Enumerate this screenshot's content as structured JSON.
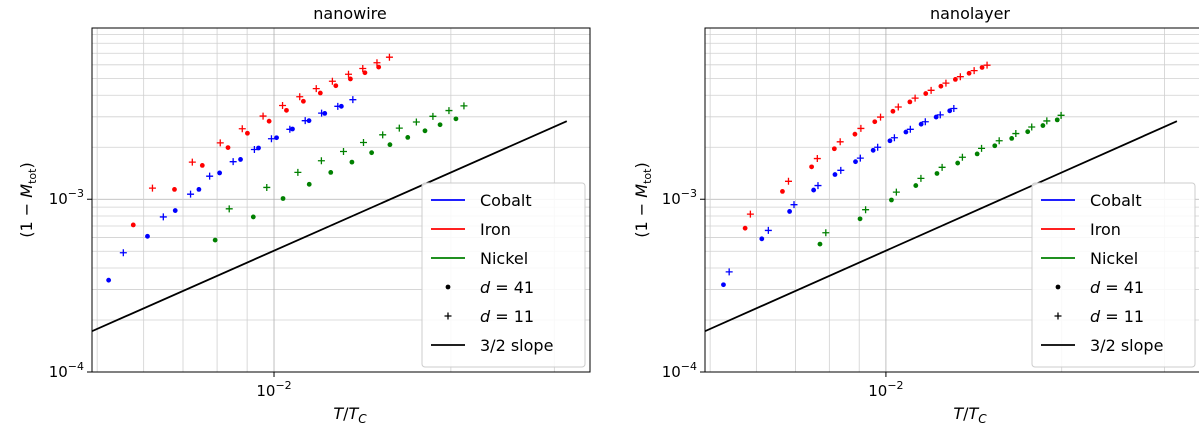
{
  "chart_data": [
    {
      "type": "scatter",
      "title": "nanowire",
      "xlabel": "T/T_C",
      "ylabel": "(1 − M_tot)",
      "xscale": "log",
      "yscale": "log",
      "xlim": [
        0.0049,
        0.0345
      ],
      "ylim": [
        0.0001,
        0.0098
      ],
      "xticks": [
        {
          "value": 0.01,
          "base": "10",
          "exp": "−2"
        }
      ],
      "yticks": [
        {
          "value": 0.0001,
          "base": "10",
          "exp": "−4"
        },
        {
          "value": 0.001,
          "base": "10",
          "exp": "−3"
        }
      ],
      "grid": "major and minor",
      "legend_position": "lower right",
      "legend": [
        {
          "kind": "line",
          "color": "#0000ff",
          "label": "Cobalt"
        },
        {
          "kind": "line",
          "color": "#ff0000",
          "label": "Iron"
        },
        {
          "kind": "line",
          "color": "#008000",
          "label": "Nickel"
        },
        {
          "kind": "dot",
          "color": "#000000",
          "label": "d = 41",
          "var": "d",
          "eq": " = 41"
        },
        {
          "kind": "plus",
          "color": "#000000",
          "label": "d = 11",
          "var": "d",
          "eq": " = 11"
        },
        {
          "kind": "line",
          "color": "#000000",
          "label": "3/2 slope"
        }
      ],
      "series": [
        {
          "name": "Cobalt",
          "marker": "dot",
          "color": "#0000ff",
          "x": [
            0.00523,
            0.00609,
            0.00679,
            0.00745,
            0.00808,
            0.00877,
            0.00941,
            0.0101,
            0.01075,
            0.01147,
            0.0122,
            0.01302
          ],
          "y": [
            0.00034,
            0.00061,
            0.00086,
            0.00114,
            0.00142,
            0.0017,
            0.00198,
            0.00227,
            0.00255,
            0.00285,
            0.00314,
            0.00345
          ]
        },
        {
          "name": "Cobalt",
          "marker": "plus",
          "color": "#0000ff",
          "x": [
            0.00554,
            0.00648,
            0.00721,
            0.00777,
            0.00852,
            0.00926,
            0.0099,
            0.01064,
            0.0113,
            0.01205,
            0.01284,
            0.01362
          ],
          "y": [
            0.00049,
            0.00079,
            0.00107,
            0.00136,
            0.00165,
            0.00194,
            0.00224,
            0.00254,
            0.00285,
            0.00315,
            0.00345,
            0.00377
          ]
        },
        {
          "name": "Iron",
          "marker": "dot",
          "color": "#ff0000",
          "x": [
            0.00576,
            0.00677,
            0.00755,
            0.00835,
            0.00901,
            0.00981,
            0.0105,
            0.01122,
            0.01199,
            0.01274,
            0.01349,
            0.01428,
            0.01507
          ],
          "y": [
            0.00071,
            0.00114,
            0.00157,
            0.00199,
            0.00241,
            0.00283,
            0.00327,
            0.00369,
            0.00412,
            0.00454,
            0.00497,
            0.0054,
            0.00582
          ]
        },
        {
          "name": "Iron",
          "marker": "plus",
          "color": "#ff0000",
          "x": [
            0.00621,
            0.00726,
            0.0081,
            0.00883,
            0.00958,
            0.01034,
            0.01106,
            0.0118,
            0.01257,
            0.01339,
            0.01416,
            0.01497,
            0.01572
          ],
          "y": [
            0.00116,
            0.00164,
            0.00212,
            0.00256,
            0.00303,
            0.00349,
            0.00392,
            0.00437,
            0.00482,
            0.00529,
            0.00571,
            0.00617,
            0.00664
          ]
        },
        {
          "name": "Nickel",
          "marker": "dot",
          "color": "#008000",
          "x": [
            0.00794,
            0.00922,
            0.01036,
            0.01148,
            0.01249,
            0.01357,
            0.01466,
            0.01575,
            0.01689,
            0.01807,
            0.01917,
            0.0204
          ],
          "y": [
            0.00058,
            0.00079,
            0.00101,
            0.00122,
            0.00143,
            0.00164,
            0.00186,
            0.00207,
            0.00228,
            0.00249,
            0.0027,
            0.00292
          ]
        },
        {
          "name": "Nickel",
          "marker": "plus",
          "color": "#008000",
          "x": [
            0.00839,
            0.00972,
            0.01098,
            0.01204,
            0.01313,
            0.0142,
            0.01531,
            0.01634,
            0.01747,
            0.01864,
            0.01985,
            0.02105
          ],
          "y": [
            0.00088,
            0.00117,
            0.00143,
            0.00167,
            0.00189,
            0.00213,
            0.00236,
            0.00258,
            0.0028,
            0.00302,
            0.00326,
            0.00347
          ]
        },
        {
          "name": "3/2 slope",
          "marker": "line",
          "color": "#000000",
          "x": [
            0.0048,
            0.0315
          ],
          "y": [
            0.000167,
            0.00283
          ]
        }
      ]
    },
    {
      "type": "scatter",
      "title": "nanolayer",
      "xlabel": "T/T_C",
      "ylabel": "(1 − M_tot)",
      "xscale": "log",
      "yscale": "log",
      "xlim": [
        0.0049,
        0.0345
      ],
      "ylim": [
        0.0001,
        0.0098
      ],
      "xticks": [
        {
          "value": 0.01,
          "base": "10",
          "exp": "−2"
        }
      ],
      "yticks": [
        {
          "value": 0.0001,
          "base": "10",
          "exp": "−4"
        },
        {
          "value": 0.001,
          "base": "10",
          "exp": "−3"
        }
      ],
      "grid": "major and minor",
      "legend_position": "lower right",
      "legend": [
        {
          "kind": "line",
          "color": "#0000ff",
          "label": "Cobalt"
        },
        {
          "kind": "line",
          "color": "#ff0000",
          "label": "Iron"
        },
        {
          "kind": "line",
          "color": "#008000",
          "label": "Nickel"
        },
        {
          "kind": "dot",
          "color": "#000000",
          "label": "d = 41",
          "var": "d",
          "eq": " = 41"
        },
        {
          "kind": "plus",
          "color": "#000000",
          "label": "d = 11",
          "var": "d",
          "eq": " = 11"
        },
        {
          "kind": "line",
          "color": "#000000",
          "label": "3/2 slope"
        }
      ],
      "series": [
        {
          "name": "Cobalt",
          "marker": "dot",
          "color": "#0000ff",
          "x": [
            0.00527,
            0.00613,
            0.00684,
            0.00752,
            0.00818,
            0.00887,
            0.00951,
            0.01016,
            0.01082,
            0.01149,
            0.01219,
            0.01286
          ],
          "y": [
            0.00032,
            0.00059,
            0.00085,
            0.00113,
            0.00139,
            0.00165,
            0.00192,
            0.00218,
            0.00245,
            0.00272,
            0.00299,
            0.00325
          ]
        },
        {
          "name": "Cobalt",
          "marker": "plus",
          "color": "#0000ff",
          "x": [
            0.00539,
            0.00629,
            0.00696,
            0.00765,
            0.00837,
            0.00904,
            0.00968,
            0.01034,
            0.01101,
            0.01168,
            0.01239,
            0.01307
          ],
          "y": [
            0.00038,
            0.00066,
            0.00093,
            0.0012,
            0.00147,
            0.00173,
            0.002,
            0.00227,
            0.00254,
            0.00281,
            0.00308,
            0.00335
          ]
        },
        {
          "name": "Iron",
          "marker": "dot",
          "color": "#ff0000",
          "x": [
            0.00574,
            0.00665,
            0.00746,
            0.00816,
            0.00885,
            0.00957,
            0.01028,
            0.01099,
            0.0117,
            0.01242,
            0.01315,
            0.01388,
            0.01461
          ],
          "y": [
            0.00068,
            0.00111,
            0.00154,
            0.00196,
            0.00238,
            0.00281,
            0.00323,
            0.00366,
            0.00409,
            0.00451,
            0.00494,
            0.00536,
            0.00579
          ]
        },
        {
          "name": "Iron",
          "marker": "plus",
          "color": "#ff0000",
          "x": [
            0.00586,
            0.00681,
            0.00763,
            0.00835,
            0.00906,
            0.00979,
            0.0105,
            0.01122,
            0.01195,
            0.01267,
            0.01341,
            0.01416,
            0.0149
          ],
          "y": [
            0.00082,
            0.00127,
            0.00172,
            0.00215,
            0.00257,
            0.00299,
            0.00342,
            0.00385,
            0.00427,
            0.0047,
            0.00512,
            0.00555,
            0.00597
          ]
        },
        {
          "name": "Nickel",
          "marker": "dot",
          "color": "#008000",
          "x": [
            0.00771,
            0.00903,
            0.01022,
            0.01125,
            0.01223,
            0.01327,
            0.01433,
            0.01536,
            0.01642,
            0.01749,
            0.01857,
            0.01965
          ],
          "y": [
            0.00055,
            0.00077,
            0.00099,
            0.0012,
            0.00141,
            0.00162,
            0.00183,
            0.00204,
            0.00225,
            0.00246,
            0.00267,
            0.00288
          ]
        },
        {
          "name": "Nickel",
          "marker": "plus",
          "color": "#008000",
          "x": [
            0.00789,
            0.00923,
            0.01042,
            0.01148,
            0.01248,
            0.01352,
            0.01458,
            0.01563,
            0.01669,
            0.01777,
            0.01886,
            0.01995
          ],
          "y": [
            0.00064,
            0.00087,
            0.0011,
            0.00132,
            0.00153,
            0.00175,
            0.00197,
            0.00218,
            0.0024,
            0.00262,
            0.00284,
            0.00306
          ]
        },
        {
          "name": "3/2 slope",
          "marker": "line",
          "color": "#000000",
          "x": [
            0.0048,
            0.0315
          ],
          "y": [
            0.000167,
            0.00283
          ]
        }
      ]
    }
  ]
}
